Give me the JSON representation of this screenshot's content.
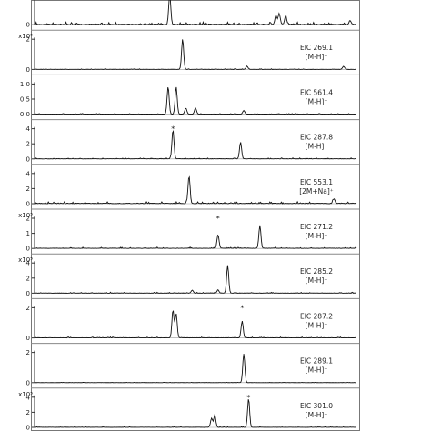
{
  "chart_data": [
    {
      "type": "line",
      "scale_label": "",
      "yticks": [
        "0"
      ],
      "trace_label": "",
      "ion_label": "",
      "peaks": [
        [
          0.42,
          1.0
        ],
        [
          0.75,
          0.3
        ],
        [
          0.76,
          0.36
        ],
        [
          0.78,
          0.27
        ],
        [
          0.98,
          0.12
        ]
      ],
      "noise": 0.04,
      "star_at": null
    },
    {
      "type": "line",
      "scale_label": "x10⁵",
      "yticks": [
        "2",
        "0"
      ],
      "trace_label": "EIC 269.1",
      "ion_label": "[M-H]⁻",
      "peaks": [
        [
          0.46,
          1.0
        ],
        [
          0.66,
          0.1
        ],
        [
          0.96,
          0.1
        ]
      ],
      "noise": 0.01,
      "star_at": null
    },
    {
      "type": "line",
      "scale_label": "",
      "yticks": [
        "1.0",
        "0.5",
        "0.0"
      ],
      "trace_label": "EIC 561.4",
      "ion_label": "[M-H]⁻",
      "peaks": [
        [
          0.415,
          0.9
        ],
        [
          0.44,
          0.9
        ],
        [
          0.47,
          0.2
        ],
        [
          0.5,
          0.2
        ],
        [
          0.65,
          0.12
        ]
      ],
      "noise": 0.01,
      "star_at": null
    },
    {
      "type": "line",
      "scale_label": "",
      "yticks": [
        "4",
        "2",
        "0"
      ],
      "trace_label": "EIC 287.8",
      "ion_label": "[M-H]⁻",
      "peaks": [
        [
          0.43,
          0.95
        ],
        [
          0.64,
          0.55
        ]
      ],
      "noise": 0.015,
      "star_at": 0.43
    },
    {
      "type": "line",
      "scale_label": "",
      "yticks": [
        "4",
        "2",
        "0"
      ],
      "trace_label": "EIC 553.1",
      "ion_label": "[2M+Na]⁺",
      "peaks": [
        [
          0.48,
          0.9
        ],
        [
          0.93,
          0.15
        ]
      ],
      "noise": 0.03,
      "star_at": null
    },
    {
      "type": "line",
      "scale_label": "x10⁵",
      "yticks": [
        "2",
        "1",
        "0"
      ],
      "trace_label": "EIC 271.2",
      "ion_label": "[M-H]⁻",
      "peaks": [
        [
          0.57,
          0.45
        ],
        [
          0.7,
          0.75
        ]
      ],
      "noise": 0.02,
      "star_at": 0.57
    },
    {
      "type": "line",
      "scale_label": "x10⁵",
      "yticks": [
        "4",
        "2",
        "0"
      ],
      "trace_label": "EIC 285.2",
      "ion_label": "[M-H]⁻",
      "peaks": [
        [
          0.6,
          0.92
        ],
        [
          0.49,
          0.1
        ],
        [
          0.57,
          0.1
        ]
      ],
      "noise": 0.015,
      "star_at": null
    },
    {
      "type": "line",
      "scale_label": "",
      "yticks": [
        "2",
        "0"
      ],
      "trace_label": "EIC 287.2",
      "ion_label": "[M-H]⁻",
      "peaks": [
        [
          0.43,
          0.92
        ],
        [
          0.44,
          0.8
        ],
        [
          0.645,
          0.55
        ]
      ],
      "noise": 0.015,
      "star_at": 0.645
    },
    {
      "type": "line",
      "scale_label": "",
      "yticks": [
        "2",
        "0"
      ],
      "trace_label": "EIC 289.1",
      "ion_label": "[M-H]⁻",
      "peaks": [
        [
          0.65,
          0.95
        ]
      ],
      "noise": 0.005,
      "star_at": null
    },
    {
      "type": "line",
      "scale_label": "x10⁵",
      "yticks": [
        "4",
        "2",
        "0"
      ],
      "trace_label": "EIC 301.0",
      "ion_label": "[M-H]⁻",
      "peaks": [
        [
          0.55,
          0.3
        ],
        [
          0.56,
          0.4
        ],
        [
          0.665,
          0.95
        ]
      ],
      "noise": 0.01,
      "star_at": 0.665
    }
  ]
}
